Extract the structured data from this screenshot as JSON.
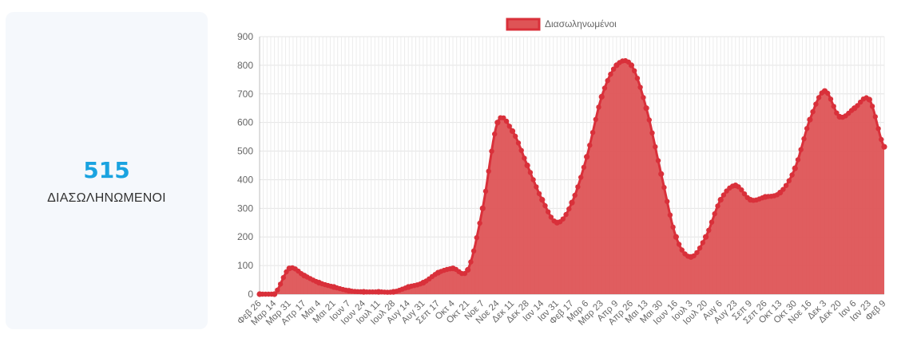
{
  "summary": {
    "value": "515",
    "label": "ΔΙΑΣΩΛΗΝΩΜΕΝΟΙ",
    "accent_color": "#1aa3e0"
  },
  "chart_data": {
    "type": "area",
    "title": "",
    "xlabel": "",
    "ylabel": "",
    "ylim": [
      0,
      900
    ],
    "yticks": [
      0,
      100,
      200,
      300,
      400,
      500,
      600,
      700,
      800,
      900
    ],
    "grid": true,
    "legend_position": "top",
    "fill_color": "#de5456",
    "line_color": "#d9303a",
    "categories": [
      "Φεβ 26",
      "Μαρ 14",
      "Μαρ 31",
      "Απρ 17",
      "Μαι 4",
      "Μαι 21",
      "Ιουν 7",
      "Ιουν 24",
      "Ιουλ 11",
      "Ιουλ 28",
      "Αυγ 14",
      "Αυγ 31",
      "Σεπ 17",
      "Οκτ 4",
      "Οκτ 21",
      "Νοε 7",
      "Νοε 24",
      "Δεκ 11",
      "Δεκ 28",
      "Ιαν 14",
      "Ιαν 31",
      "Φεβ 17",
      "Μαρ 6",
      "Μαρ 23",
      "Απρ 9",
      "Απρ 26",
      "Μαι 13",
      "Μαι 30",
      "Ιουν 16",
      "Ιουλ 3",
      "Ιουλ 20",
      "Αυγ 6",
      "Αυγ 23",
      "Σεπ 9",
      "Σεπ 26",
      "Οκτ 13",
      "Οκτ 30",
      "Νοε 16",
      "Δεκ 3",
      "Δεκ 20",
      "Ιαν 6",
      "Ιαν 23",
      "Φεβ 9"
    ],
    "series": [
      {
        "name": "Διασωληνωμένοι",
        "values": [
          0,
          0,
          90,
          65,
          40,
          25,
          12,
          8,
          8,
          8,
          25,
          40,
          75,
          90,
          85,
          300,
          600,
          570,
          450,
          330,
          250,
          320,
          480,
          690,
          800,
          800,
          650,
          420,
          200,
          130,
          200,
          330,
          380,
          330,
          340,
          355,
          440,
          610,
          710,
          620,
          650,
          680,
          515
        ]
      }
    ]
  }
}
